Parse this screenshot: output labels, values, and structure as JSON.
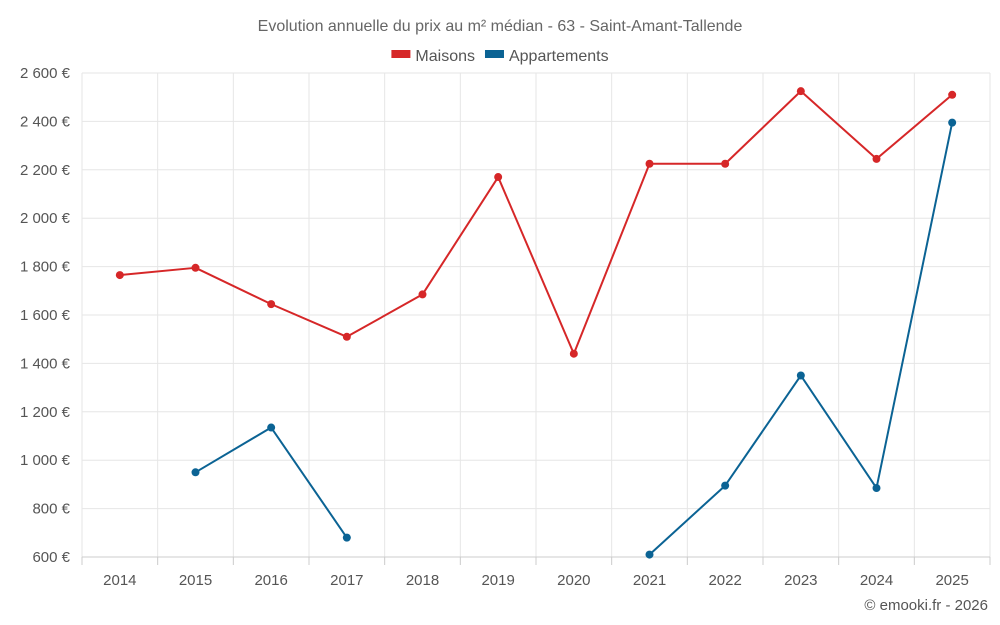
{
  "chart_data": {
    "type": "line",
    "title": "Evolution annuelle du prix au m² médian - 63 - Saint-Amant-Tallende",
    "categories": [
      "2014",
      "2015",
      "2016",
      "2017",
      "2018",
      "2019",
      "2020",
      "2021",
      "2022",
      "2023",
      "2024",
      "2025"
    ],
    "ylim": [
      600,
      2600
    ],
    "yticks": [
      600,
      800,
      1000,
      1200,
      1400,
      1600,
      1800,
      2000,
      2200,
      2400,
      2600
    ],
    "ytick_labels": [
      "600 €",
      "800 €",
      "1 000 €",
      "1 200 €",
      "1 400 €",
      "1 600 €",
      "1 800 €",
      "2 000 €",
      "2 200 €",
      "2 400 €",
      "2 600 €"
    ],
    "grid": true,
    "legend_position": "top-center",
    "series": [
      {
        "name": "Maisons",
        "color": "#d62728",
        "values": [
          1765,
          1795,
          1645,
          1510,
          1685,
          2170,
          1440,
          2225,
          2225,
          2525,
          2245,
          2510
        ]
      },
      {
        "name": "Appartements",
        "color": "#0b6394",
        "values": [
          null,
          950,
          1135,
          680,
          null,
          null,
          null,
          610,
          895,
          1350,
          885,
          2395
        ]
      }
    ]
  },
  "credit": "© emooki.fr - 2026"
}
